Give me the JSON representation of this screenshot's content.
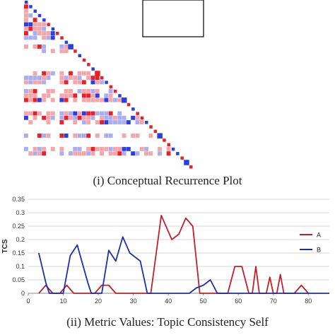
{
  "recurrence_plot": {
    "caption": "(i) Conceptual Recurrence Plot",
    "colors": {
      "positive": "#e8202a",
      "positive_light": "#f4a6a8",
      "negative": "#2a3fe0",
      "negative_light": "#a7aef2"
    }
  },
  "chart_data": {
    "type": "line",
    "caption": "(ii) Metric Values: Topic Consistency Self",
    "title": "",
    "xlabel": "",
    "ylabel": "TCS",
    "xlim": [
      0,
      86
    ],
    "ylim": [
      0,
      0.35
    ],
    "x_ticks": [
      0,
      10,
      20,
      30,
      40,
      50,
      60,
      70,
      80
    ],
    "y_ticks": [
      "0",
      "0.05",
      "0.1",
      "0.15",
      "0.2",
      "0.25",
      "0.3",
      "0.35"
    ],
    "grid": "horizontal",
    "legend_placement": "right",
    "series": [
      {
        "name": "A",
        "color": "#c0202a",
        "points": [
          [
            3,
            0
          ],
          [
            5,
            0.03
          ],
          [
            7,
            0
          ],
          [
            9,
            0
          ],
          [
            11,
            0.03
          ],
          [
            13,
            0
          ],
          [
            19,
            0
          ],
          [
            21,
            0.03
          ],
          [
            23,
            0.03
          ],
          [
            25,
            0
          ],
          [
            35,
            0
          ],
          [
            38,
            0.29
          ],
          [
            41,
            0.2
          ],
          [
            43,
            0.22
          ],
          [
            45,
            0.28
          ],
          [
            47,
            0.25
          ],
          [
            49,
            0
          ],
          [
            57,
            0
          ],
          [
            59,
            0.1
          ],
          [
            61,
            0.1
          ],
          [
            63,
            0
          ],
          [
            64,
            0
          ],
          [
            65,
            0.1
          ],
          [
            66,
            0
          ],
          [
            68,
            0
          ],
          [
            69,
            0.06
          ],
          [
            70,
            0
          ],
          [
            71,
            0
          ],
          [
            72,
            0.07
          ],
          [
            73,
            0
          ],
          [
            76,
            0
          ],
          [
            78,
            0.03
          ],
          [
            80,
            0
          ]
        ]
      },
      {
        "name": "B",
        "color": "#1f2fa8",
        "points": [
          [
            3,
            0.15
          ],
          [
            5,
            0.04
          ],
          [
            6,
            0
          ],
          [
            10,
            0
          ],
          [
            12,
            0.14
          ],
          [
            14,
            0.18
          ],
          [
            17,
            0.04
          ],
          [
            18,
            0
          ],
          [
            21,
            0
          ],
          [
            23,
            0.16
          ],
          [
            25,
            0.12
          ],
          [
            27,
            0.21
          ],
          [
            29,
            0.15
          ],
          [
            32,
            0.12
          ],
          [
            34,
            0
          ],
          [
            46,
            0
          ],
          [
            48,
            0.02
          ],
          [
            50,
            0.03
          ],
          [
            52,
            0.05
          ],
          [
            54,
            0
          ],
          [
            86,
            0
          ]
        ]
      }
    ]
  }
}
